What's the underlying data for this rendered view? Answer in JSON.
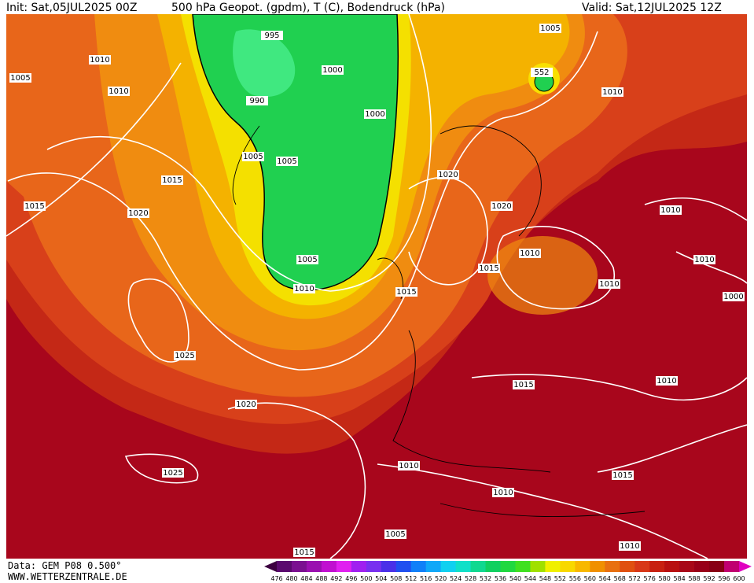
{
  "header": {
    "init": "Init: Sat,05JUL2025 00Z",
    "title": "500 hPa Geopot. (gpdm), T (C), Bodendruck (hPa)",
    "valid": "Valid: Sat,12JUL2025 12Z"
  },
  "footer": {
    "source": "Data: GEM P08 0.500°",
    "site": "WWW.WETTERZENTRALE.DE"
  },
  "isobar_labels": [
    "995",
    "1000",
    "990",
    "1000",
    "1005",
    "1005",
    "1005",
    "1010",
    "1015",
    "1015",
    "1020",
    "1025",
    "1020",
    "1025",
    "1010",
    "1005",
    "1010",
    "1005",
    "552",
    "1010",
    "1020",
    "1020",
    "1015",
    "1015",
    "1010",
    "1010",
    "1010",
    "1010",
    "1000",
    "1010",
    "1015",
    "1010",
    "1015",
    "1010",
    "1005",
    "1015",
    "1010"
  ],
  "colorbar": {
    "labels": [
      "476",
      "480",
      "484",
      "488",
      "492",
      "496",
      "500",
      "504",
      "508",
      "512",
      "516",
      "520",
      "524",
      "528",
      "532",
      "536",
      "540",
      "544",
      "548",
      "552",
      "556",
      "560",
      "564",
      "568",
      "572",
      "576",
      "580",
      "584",
      "588",
      "592",
      "596",
      "600"
    ],
    "colors": [
      "#3c0040",
      "#5a0a6e",
      "#7a1090",
      "#9a10b0",
      "#c010d0",
      "#e020f0",
      "#a020f0",
      "#7830f0",
      "#4a30e8",
      "#2050f0",
      "#1080f8",
      "#10a8f8",
      "#10d0f0",
      "#10e0c8",
      "#10d890",
      "#10d060",
      "#20d840",
      "#40e020",
      "#a0e000",
      "#f0f000",
      "#f8d800",
      "#f8b800",
      "#f09000",
      "#e87010",
      "#e05010",
      "#d83818",
      "#c82010",
      "#b81010",
      "#a80818",
      "#980018",
      "#880014",
      "#c00070",
      "#e000c0"
    ]
  }
}
